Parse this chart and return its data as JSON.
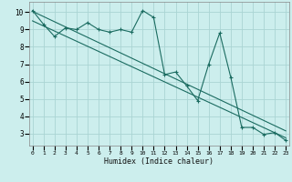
{
  "title": "",
  "xlabel": "Humidex (Indice chaleur)",
  "bg_color": "#cceeed",
  "grid_color": "#aad4d3",
  "line_color": "#1a6b60",
  "xlim": [
    -0.3,
    23.3
  ],
  "ylim": [
    2.3,
    10.6
  ],
  "xticks": [
    0,
    1,
    2,
    3,
    4,
    5,
    6,
    7,
    8,
    9,
    10,
    11,
    12,
    13,
    14,
    15,
    16,
    17,
    18,
    19,
    20,
    21,
    22,
    23
  ],
  "yticks": [
    3,
    4,
    5,
    6,
    7,
    8,
    9,
    10
  ],
  "series1_x": [
    0,
    1,
    2,
    3,
    4,
    5,
    6,
    7,
    8,
    9,
    10,
    11,
    12,
    13,
    14,
    15,
    16,
    17,
    18,
    19,
    20,
    21,
    22,
    23
  ],
  "series1_y": [
    10.1,
    9.3,
    8.6,
    9.1,
    9.0,
    9.4,
    9.0,
    8.85,
    9.0,
    8.85,
    10.1,
    9.7,
    6.4,
    6.55,
    5.75,
    4.9,
    7.0,
    8.8,
    6.25,
    3.35,
    3.35,
    2.95,
    3.05,
    2.6
  ],
  "series2_x": [
    0,
    23
  ],
  "series2_y": [
    10.05,
    3.15
  ],
  "series3_x": [
    0,
    23
  ],
  "series3_y": [
    9.5,
    2.75
  ],
  "xlabel_fontsize": 6.0,
  "tick_fontsize_x": 4.5,
  "tick_fontsize_y": 5.5
}
